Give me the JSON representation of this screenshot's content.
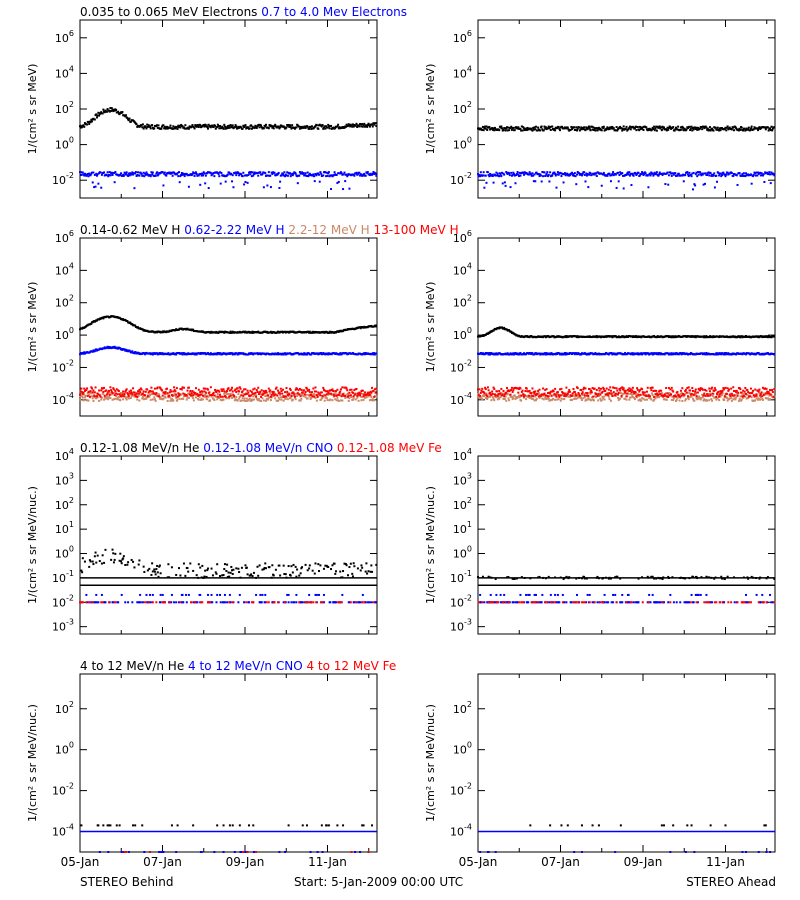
{
  "colors": {
    "black": "#000000",
    "blue": "#0000ff",
    "tan": "#cc8866",
    "red": "#ff0000"
  },
  "footer": {
    "left": "STEREO Behind",
    "center": "Start:  5-Jan-2009 00:00 UTC",
    "right": "STEREO Ahead"
  },
  "chart_data": [
    {
      "type": "scatter",
      "row": 0,
      "y_scale": "log",
      "ylabel": "1/(cm² s sr MeV)",
      "yticks": [
        {
          "exp": "-2",
          "v": 0.01
        },
        {
          "exp": "0",
          "v": 1
        },
        {
          "exp": "2",
          "v": 100
        },
        {
          "exp": "4",
          "v": 10000
        },
        {
          "exp": "6",
          "v": 1000000
        }
      ],
      "ylim": [
        0.001,
        10000000
      ],
      "legend": [
        {
          "text": "0.035 to 0.065 MeV Electrons",
          "color": "#000000"
        },
        {
          "text": "0.7 to 4.0 Mev Electrons",
          "color": "#0000ff"
        }
      ],
      "behind": {
        "series": [
          {
            "color": "#000000",
            "base": 10,
            "noise": 0.12,
            "trend": 1.4,
            "peaks": [
              {
                "x": 0.75,
                "amp": 8,
                "w": 0.35
              }
            ]
          },
          {
            "color": "#0000ff",
            "base": 0.022,
            "noise": 0.12,
            "scatter_low": 0.006
          }
        ]
      },
      "ahead": {
        "series": [
          {
            "color": "#000000",
            "base": 8,
            "noise": 0.12
          },
          {
            "color": "#0000ff",
            "base": 0.022,
            "noise": 0.12,
            "scatter_low": 0.006
          }
        ]
      }
    },
    {
      "type": "scatter",
      "row": 1,
      "y_scale": "log",
      "ylabel": "1/(cm² s sr MeV)",
      "yticks": [
        {
          "exp": "-4",
          "v": 0.0001
        },
        {
          "exp": "-2",
          "v": 0.01
        },
        {
          "exp": "0",
          "v": 1
        },
        {
          "exp": "2",
          "v": 100
        },
        {
          "exp": "4",
          "v": 10000
        },
        {
          "exp": "6",
          "v": 1000000
        }
      ],
      "ylim": [
        1e-05,
        1000000
      ],
      "legend": [
        {
          "text": "0.14-0.62 MeV H",
          "color": "#000000"
        },
        {
          "text": "0.62-2.22 MeV H",
          "color": "#0000ff"
        },
        {
          "text": "2.2-12 MeV H",
          "color": "#cc8866"
        },
        {
          "text": "13-100 MeV H",
          "color": "#ff0000"
        }
      ],
      "behind": {
        "series": [
          {
            "color": "#000000",
            "base": 1.5,
            "noise": 0.04,
            "trend": 2.5,
            "peaks": [
              {
                "x": 0.75,
                "amp": 8,
                "w": 0.45
              },
              {
                "x": 2.5,
                "amp": 0.6,
                "w": 0.3
              }
            ]
          },
          {
            "color": "#0000ff",
            "base": 0.07,
            "noise": 0.05,
            "peaks": [
              {
                "x": 0.75,
                "amp": 1.5,
                "w": 0.4
              }
            ]
          },
          {
            "color": "#cc8866",
            "base": 0.00015,
            "noise": 0.25
          },
          {
            "color": "#ff0000",
            "base": 0.0003,
            "noise": 0.3
          }
        ]
      },
      "ahead": {
        "series": [
          {
            "color": "#000000",
            "base": 0.8,
            "noise": 0.04,
            "peaks": [
              {
                "x": 0.55,
                "amp": 2.5,
                "w": 0.25
              }
            ]
          },
          {
            "color": "#0000ff",
            "base": 0.07,
            "noise": 0.05
          },
          {
            "color": "#cc8866",
            "base": 0.00015,
            "noise": 0.25
          },
          {
            "color": "#ff0000",
            "base": 0.0003,
            "noise": 0.3
          }
        ]
      }
    },
    {
      "type": "scatter",
      "row": 2,
      "y_scale": "log",
      "ylabel": "1/(cm² s sr MeV/nuc.)",
      "yticks": [
        {
          "exp": "-3",
          "v": 0.001
        },
        {
          "exp": "-2",
          "v": 0.01
        },
        {
          "exp": "-1",
          "v": 0.1
        },
        {
          "exp": "0",
          "v": 1
        },
        {
          "exp": "1",
          "v": 10
        },
        {
          "exp": "2",
          "v": 100
        },
        {
          "exp": "3",
          "v": 1000
        },
        {
          "exp": "4",
          "v": 10000
        }
      ],
      "ylim": [
        0.0005,
        10000
      ],
      "legend": [
        {
          "text": "0.12-1.08 MeV/n He",
          "color": "#000000"
        },
        {
          "text": "0.12-1.08 MeV/n CNO",
          "color": "#0000ff"
        },
        {
          "text": "0.12-1.08 MeV Fe",
          "color": "#ff0000"
        }
      ],
      "behind": {
        "lines": [
          {
            "v": 0.1,
            "color": "#000000"
          },
          {
            "v": 0.05,
            "color": "#000000"
          }
        ],
        "series": [
          {
            "color": "#000000",
            "base": 0.2,
            "noise": 0.3,
            "sparse": 0.5,
            "peaks": [
              {
                "x": 0.8,
                "amp": 3,
                "w": 0.6
              }
            ]
          },
          {
            "color": "#0000ff",
            "base": 0.01,
            "noise": 0.0,
            "sparse": 0.3
          },
          {
            "color": "#0000ff",
            "base": 0.02,
            "noise": 0.0,
            "sparse": 0.1
          },
          {
            "color": "#ff0000",
            "base": 0.01,
            "noise": 0.0,
            "sparse": 0.15
          }
        ]
      },
      "ahead": {
        "lines": [
          {
            "v": 0.05,
            "color": "#000000"
          },
          {
            "v": 0.1,
            "color": "#000000"
          }
        ],
        "series": [
          {
            "color": "#000000",
            "base": 0.1,
            "noise": 0.05,
            "sparse": 0.25
          },
          {
            "color": "#0000ff",
            "base": 0.01,
            "noise": 0.0,
            "sparse": 0.3
          },
          {
            "color": "#0000ff",
            "base": 0.02,
            "noise": 0.0,
            "sparse": 0.08
          },
          {
            "color": "#ff0000",
            "base": 0.01,
            "noise": 0.0,
            "sparse": 0.15
          }
        ]
      }
    },
    {
      "type": "scatter",
      "row": 3,
      "y_scale": "log",
      "ylabel": "1/(cm² s sr MeV/nuc.)",
      "yticks": [
        {
          "exp": "-4",
          "v": 0.0001
        },
        {
          "exp": "-2",
          "v": 0.01
        },
        {
          "exp": "0",
          "v": 1
        },
        {
          "exp": "2",
          "v": 100
        }
      ],
      "ylim": [
        1e-05,
        5000
      ],
      "legend": [
        {
          "text": "4 to 12 MeV/n He",
          "color": "#000000"
        },
        {
          "text": "4 to 12 MeV/n CNO",
          "color": "#0000ff"
        },
        {
          "text": "4 to 12 MeV Fe",
          "color": "#ff0000"
        }
      ],
      "behind": {
        "lines": [
          {
            "v": 0.0001,
            "color": "#0000ff"
          }
        ],
        "series": [
          {
            "color": "#000000",
            "base": 0.0002,
            "noise": 0.0,
            "sparse": 0.08
          },
          {
            "color": "#0000ff",
            "base": 1e-05,
            "noise": 0.0,
            "sparse": 0.06
          },
          {
            "color": "#ff0000",
            "base": 1e-05,
            "noise": 0.0,
            "sparse": 0.02
          }
        ]
      },
      "ahead": {
        "lines": [
          {
            "v": 0.0001,
            "color": "#0000ff"
          }
        ],
        "series": [
          {
            "color": "#000000",
            "base": 0.0002,
            "noise": 0.0,
            "sparse": 0.04
          },
          {
            "color": "#0000ff",
            "base": 1e-05,
            "noise": 0.0,
            "sparse": 0.03
          }
        ]
      }
    }
  ],
  "x_axis": {
    "range_days": [
      0,
      7.2
    ],
    "tick_labels": [
      {
        "label": "05-Jan",
        "day": 0
      },
      {
        "label": "07-Jan",
        "day": 2
      },
      {
        "label": "09-Jan",
        "day": 4
      },
      {
        "label": "11-Jan",
        "day": 6
      }
    ]
  }
}
